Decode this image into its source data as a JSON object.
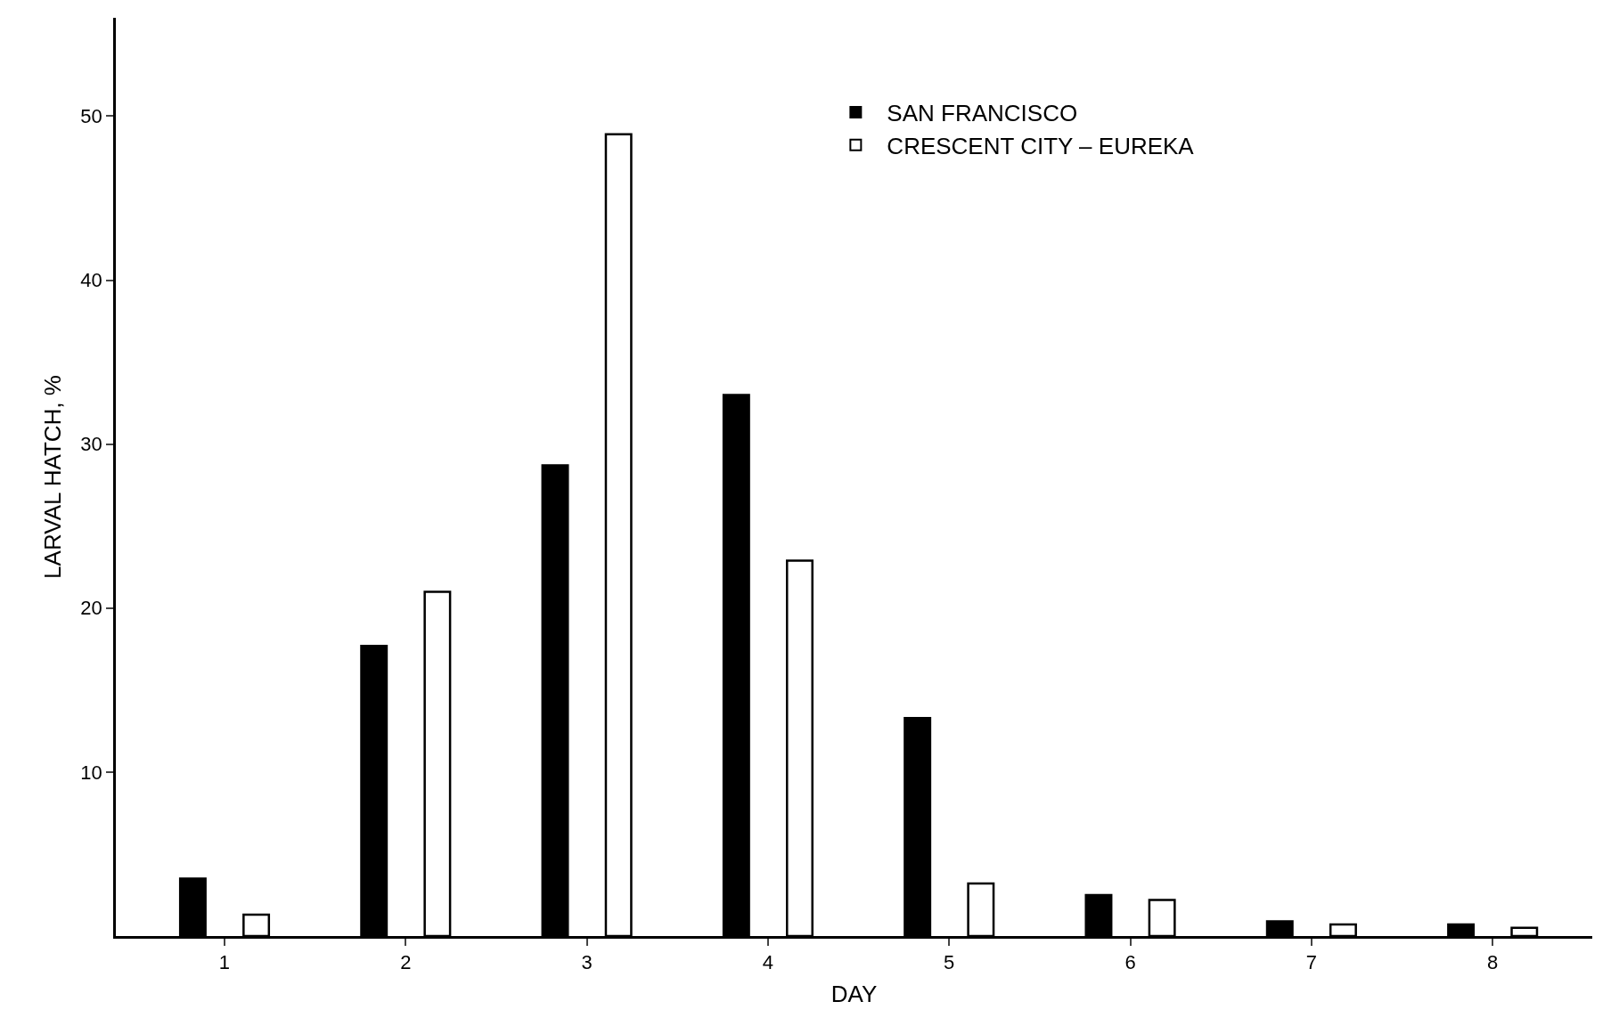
{
  "chart_data": {
    "type": "bar",
    "xlabel": "DAY",
    "ylabel": "LARVAL HATCH, %",
    "categories": [
      "1",
      "2",
      "3",
      "4",
      "5",
      "6",
      "7",
      "8"
    ],
    "series": [
      {
        "name": "SAN FRANCISCO",
        "color": "#000000",
        "values": [
          3.5,
          17.7,
          28.7,
          33.0,
          13.3,
          2.5,
          0.9,
          0.7
        ]
      },
      {
        "name": "CRESCENT CITY – EUREKA",
        "color": "#ffffff",
        "values": [
          1.3,
          21.0,
          48.9,
          22.9,
          3.2,
          2.2,
          0.7,
          0.5
        ]
      }
    ],
    "ylim": [
      0,
      56
    ],
    "yticks": [
      10,
      20,
      30,
      40,
      50
    ],
    "legend": "top right"
  }
}
